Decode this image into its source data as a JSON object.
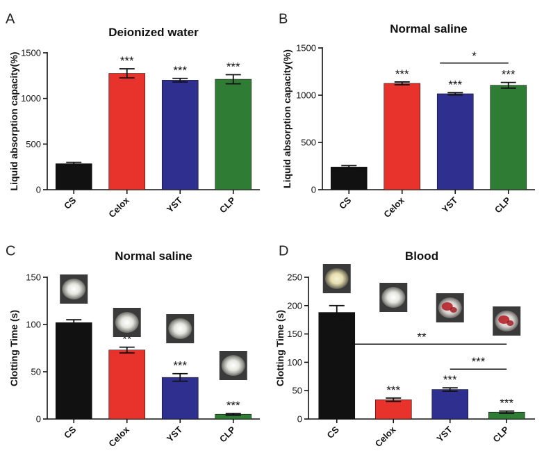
{
  "colors": {
    "CS": "#111111",
    "Celox": "#e8322c",
    "YST": "#2e2f8f",
    "CLP": "#2f7d35"
  },
  "chart_data": [
    {
      "panel": "A",
      "type": "bar",
      "title": "Deionized water",
      "ylabel": "Liquid absorption capacity(%)",
      "xlabel": "",
      "categories": [
        "CS",
        "Celox",
        "YST",
        "CLP"
      ],
      "values": [
        285,
        1275,
        1200,
        1210
      ],
      "errors": [
        15,
        50,
        20,
        50
      ],
      "significance": [
        "",
        "***",
        "***",
        "***"
      ],
      "brackets": [],
      "ylim": [
        0,
        1500
      ],
      "yticks": [
        0,
        500,
        1000,
        1500
      ],
      "grid": false
    },
    {
      "panel": "B",
      "type": "bar",
      "title": "Normal saline",
      "ylabel": "Liquid absorption capacity(%)",
      "xlabel": "",
      "categories": [
        "CS",
        "Celox",
        "YST",
        "CLP"
      ],
      "values": [
        240,
        1125,
        1015,
        1105
      ],
      "errors": [
        15,
        15,
        12,
        30
      ],
      "significance": [
        "",
        "***",
        "***",
        "***"
      ],
      "brackets": [
        {
          "from": 2,
          "to": 3,
          "label": "*"
        }
      ],
      "ylim": [
        0,
        1500
      ],
      "yticks": [
        0,
        500,
        1000,
        1500
      ],
      "grid": false
    },
    {
      "panel": "C",
      "type": "bar",
      "title": "Normal saline",
      "ylabel": "Clotting Time (s)",
      "xlabel": "",
      "categories": [
        "CS",
        "Celox",
        "YST",
        "CLP"
      ],
      "values": [
        102,
        73,
        44,
        5
      ],
      "errors": [
        3,
        3,
        4,
        1
      ],
      "significance": [
        "",
        "**",
        "***",
        "***"
      ],
      "brackets": [],
      "photos": [
        "powder-white",
        "powder-white",
        "powder-white",
        "powder-white"
      ],
      "ylim": [
        0,
        150
      ],
      "yticks": [
        0,
        50,
        100,
        150
      ],
      "grid": false
    },
    {
      "panel": "D",
      "type": "bar",
      "title": "Blood",
      "ylabel": "Clotting Time (s)",
      "xlabel": "",
      "categories": [
        "CS",
        "Celox",
        "YST",
        "CLP"
      ],
      "values": [
        188,
        34,
        52,
        12
      ],
      "errors": [
        12,
        3,
        3,
        2
      ],
      "significance": [
        "",
        "***",
        "***",
        "***"
      ],
      "brackets": [
        {
          "from": 0,
          "to": 3,
          "label": "**"
        },
        {
          "from": 2,
          "to": 3,
          "label": "***"
        }
      ],
      "photos": [
        "powder-yellow",
        "powder-white",
        "powder-blood",
        "powder-blood"
      ],
      "ylim": [
        0,
        250
      ],
      "yticks": [
        0,
        50,
        100,
        150,
        200,
        250
      ],
      "grid": false
    }
  ]
}
